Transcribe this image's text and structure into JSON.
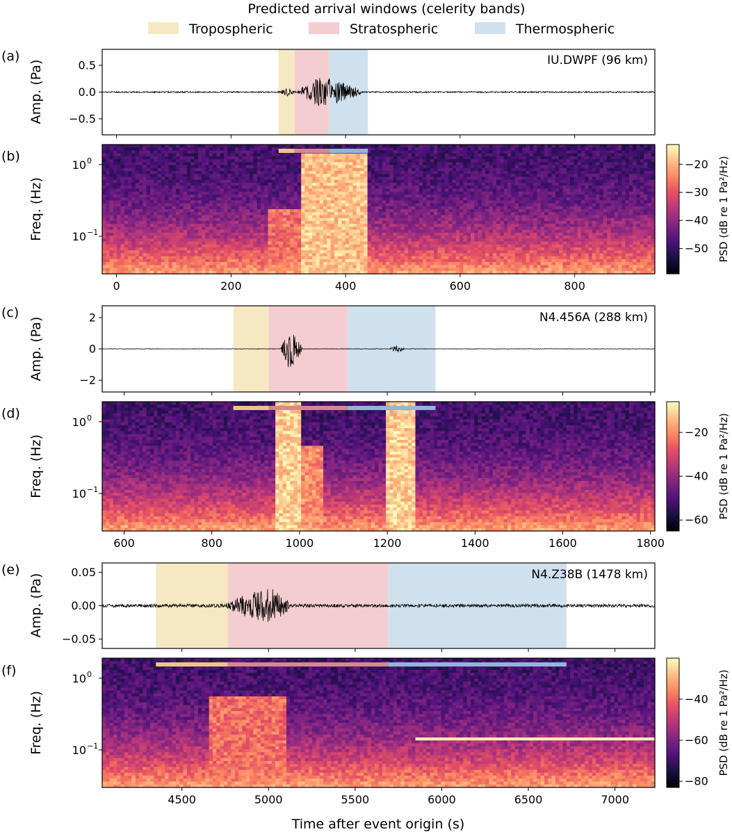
{
  "legend": {
    "title": "Predicted arrival windows (celerity bands)",
    "items": [
      {
        "label": "Tropospheric",
        "color": "#f6e8c3"
      },
      {
        "label": "Stratospheric",
        "color": "#f4cdd0"
      },
      {
        "label": "Thermospheric",
        "color": "#cfe1ee"
      }
    ]
  },
  "band_colors": {
    "trop": "#ebc787",
    "strat": "#d78988",
    "thermo": "#8fb7d9"
  },
  "chart_data": [
    {
      "type": "line",
      "panel": "(a)",
      "station": "IU.DWPF  (96 km)",
      "ylabel": "Amp. (Pa)",
      "xlim": [
        -25,
        940
      ],
      "ylim": [
        -0.8,
        0.8
      ],
      "yticks": [
        {
          "v": 0.5,
          "t": "0.5"
        },
        {
          "v": 0.0,
          "t": "0.0"
        },
        {
          "v": -0.5,
          "t": "−0.5"
        }
      ],
      "windows": [
        {
          "band": "Tropospheric",
          "x": [
            283,
            311
          ]
        },
        {
          "band": "Stratospheric",
          "x": [
            311,
            371
          ]
        },
        {
          "band": "Thermospheric",
          "x": [
            371,
            439
          ]
        }
      ],
      "waveform": {
        "noise": 0.013,
        "packets": [
          {
            "t0": 285,
            "t1": 312,
            "amp": 0.09
          },
          {
            "t0": 315,
            "t1": 430,
            "amp": 0.3,
            "peak": 360
          }
        ]
      }
    },
    {
      "type": "heatmap",
      "panel": "(b)",
      "ylabel": "Freq. (Hz)",
      "yscale": "log",
      "xlim": [
        -25,
        940
      ],
      "ylim": [
        0.03,
        1.9
      ],
      "yticks": [
        {
          "v": 1.0,
          "base": "10",
          "exp": "0"
        },
        {
          "v": 0.1,
          "base": "10",
          "exp": "−1"
        }
      ],
      "xticks": [
        "0",
        "200",
        "400",
        "600",
        "800"
      ],
      "xtick_values": [
        0,
        200,
        400,
        600,
        800
      ],
      "colorbar": {
        "label": "PSD (dB re 1 Pa²/Hz)",
        "ticks": [
          "−20",
          "−30",
          "−40",
          "−50"
        ],
        "tick_values": [
          -20,
          -30,
          -40,
          -50
        ],
        "range": [
          -59,
          -13
        ]
      },
      "energy": [
        {
          "t0": 265,
          "t1": 330,
          "fmax": 0.25,
          "gain": 0.55
        },
        {
          "t0": 320,
          "t1": 440,
          "fmax": 1.4,
          "gain": 0.95
        }
      ]
    },
    {
      "type": "line",
      "panel": "(c)",
      "station": "N4.456A  (288 km)",
      "ylabel": "Amp. (Pa)",
      "xlim": [
        550,
        1810
      ],
      "ylim": [
        -2.75,
        2.75
      ],
      "yticks": [
        {
          "v": 2,
          "t": "2"
        },
        {
          "v": 0,
          "t": "0"
        },
        {
          "v": -2,
          "t": "−2"
        }
      ],
      "windows": [
        {
          "band": "Tropospheric",
          "x": [
            849,
            930
          ]
        },
        {
          "band": "Stratospheric",
          "x": [
            930,
            1110
          ]
        },
        {
          "band": "Thermospheric",
          "x": [
            1110,
            1310
          ]
        }
      ],
      "waveform": {
        "noise": 0.015,
        "packets": [
          {
            "t0": 958,
            "t1": 1006,
            "amp": 1.5,
            "peak": 972
          },
          {
            "t0": 1205,
            "t1": 1240,
            "amp": 0.25,
            "peak": 1222
          }
        ]
      }
    },
    {
      "type": "heatmap",
      "panel": "(d)",
      "ylabel": "Freq. (Hz)",
      "yscale": "log",
      "xlim": [
        550,
        1810
      ],
      "ylim": [
        0.03,
        1.9
      ],
      "yticks": [
        {
          "v": 1.0,
          "base": "10",
          "exp": "0"
        },
        {
          "v": 0.1,
          "base": "10",
          "exp": "−1"
        }
      ],
      "xticks": [
        "600",
        "800",
        "1000",
        "1200",
        "1400",
        "1600",
        "1800"
      ],
      "xtick_values": [
        600,
        800,
        1000,
        1200,
        1400,
        1600,
        1800
      ],
      "colorbar": {
        "label": "PSD (dB re 1 Pa²/Hz)",
        "ticks": [
          "−20",
          "−40",
          "−60"
        ],
        "tick_values": [
          -20,
          -40,
          -60
        ],
        "range": [
          -65,
          -6
        ]
      },
      "energy": [
        {
          "t0": 945,
          "t1": 1000,
          "fmax": 1.9,
          "gain": 1.0
        },
        {
          "t0": 1000,
          "t1": 1055,
          "fmax": 0.45,
          "gain": 0.7
        },
        {
          "t0": 1200,
          "t1": 1265,
          "fmax": 1.9,
          "gain": 1.0
        }
      ]
    },
    {
      "type": "line",
      "panel": "(e)",
      "station": "N4.Z38B  (1478 km)",
      "ylabel": "Amp. (Pa)",
      "xlim": [
        4040,
        7230
      ],
      "ylim": [
        -0.064,
        0.064
      ],
      "yticks": [
        {
          "v": 0.05,
          "t": "0.05"
        },
        {
          "v": 0.0,
          "t": "0.00"
        },
        {
          "v": -0.05,
          "t": "−0.05"
        }
      ],
      "windows": [
        {
          "band": "Tropospheric",
          "x": [
            4350,
            4765
          ]
        },
        {
          "band": "Stratospheric",
          "x": [
            4765,
            5690
          ]
        },
        {
          "band": "Thermospheric",
          "x": [
            5690,
            6720
          ]
        }
      ],
      "waveform": {
        "noise": 0.0025,
        "packets": [
          {
            "t0": 4740,
            "t1": 5130,
            "amp": 0.028,
            "peak": 5010
          }
        ]
      }
    },
    {
      "type": "heatmap",
      "panel": "(f)",
      "ylabel": "Freq. (Hz)",
      "yscale": "log",
      "xlim": [
        4040,
        7230
      ],
      "ylim": [
        0.03,
        1.9
      ],
      "yticks": [
        {
          "v": 1.0,
          "base": "10",
          "exp": "0"
        },
        {
          "v": 0.1,
          "base": "10",
          "exp": "−1"
        }
      ],
      "xticks": [
        "4500",
        "5000",
        "5500",
        "6000",
        "6500",
        "7000"
      ],
      "xtick_values": [
        4500,
        5000,
        5500,
        6000,
        6500,
        7000
      ],
      "xlabel": "Time after event origin (s)",
      "colorbar": {
        "label": "PSD (dB re 1 Pa²/Hz)",
        "ticks": [
          "−40",
          "−60",
          "−80"
        ],
        "tick_values": [
          -40,
          -60,
          -80
        ],
        "range": [
          -83,
          -20
        ]
      },
      "energy": [
        {
          "t0": 4650,
          "t1": 5100,
          "fmax": 0.55,
          "gain": 0.55
        }
      ],
      "hline": {
        "f": 0.145,
        "t0": 5850,
        "t1": 7230
      }
    }
  ]
}
